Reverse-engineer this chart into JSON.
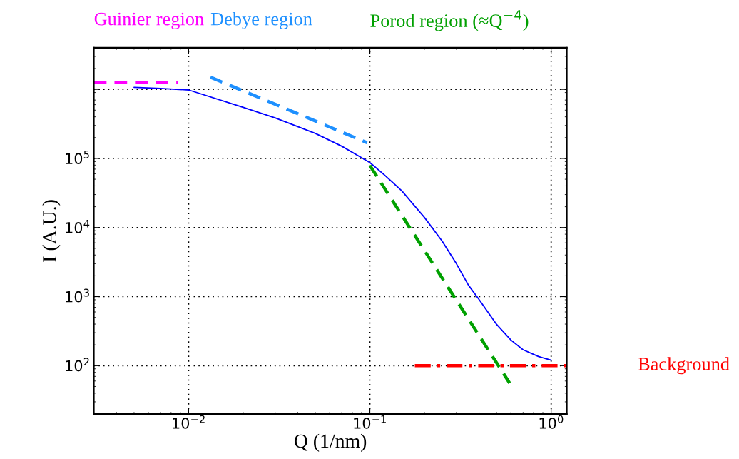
{
  "chart_data": {
    "type": "line",
    "xlabel": "Q (1/nm)",
    "ylabel": "I (A.U.)",
    "log": "xy",
    "grid": true,
    "legend": false,
    "xlim": [
      0.003,
      1.22
    ],
    "ylim": [
      20,
      4000000
    ],
    "xticks": [
      {
        "value": 0.01,
        "label": "10$^{−2}$"
      },
      {
        "value": 0.1,
        "label": "10$^{−1}$"
      },
      {
        "value": 1,
        "label": "10$^{0}$"
      }
    ],
    "yticks": [
      {
        "value": 100,
        "label": "10$^{2}$"
      },
      {
        "value": 1000,
        "label": "10$^{3}$"
      },
      {
        "value": 10000,
        "label": "10$^{4}$"
      },
      {
        "value": 100000,
        "label": "10$^{5}$"
      },
      {
        "value": 1000000,
        "label": null
      }
    ],
    "series": [
      {
        "color": "#0000ff",
        "line_style": "solid",
        "x": [
          0.005,
          0.007,
          0.01,
          0.02,
          0.03,
          0.05,
          0.07,
          0.1,
          0.12,
          0.15,
          0.2,
          0.25,
          0.3,
          0.35,
          0.4,
          0.5,
          0.6,
          0.7,
          0.85,
          1.0
        ],
        "values": [
          1070000,
          1030000,
          980000,
          550000,
          387000,
          230000,
          150000,
          87000,
          58000,
          34000,
          14000,
          6400,
          3000,
          1460,
          910,
          396,
          235,
          170,
          136,
          120
        ]
      },
      {
        "name": "Guinier region",
        "color": "#ff00ff",
        "line_style": "dashed",
        "x": [
          0.003,
          0.0087
        ],
        "values": [
          1270000,
          1270000
        ]
      },
      {
        "name": "Debye region",
        "color": "#1e90ff",
        "line_style": "dashed",
        "x": [
          0.0132,
          0.0965
        ],
        "values": [
          1500000,
          169000
        ]
      },
      {
        "name": "Porod region (≈Q$^{−4}$)",
        "color": "#00a000",
        "line_style": "dashed",
        "x": [
          0.1,
          0.59
        ],
        "values": [
          79000,
          56
        ]
      },
      {
        "name": "Background",
        "color": "#ff0000",
        "line_style": "dashdot",
        "x": [
          0.177,
          1.22
        ],
        "values": [
          100,
          100
        ]
      }
    ]
  }
}
